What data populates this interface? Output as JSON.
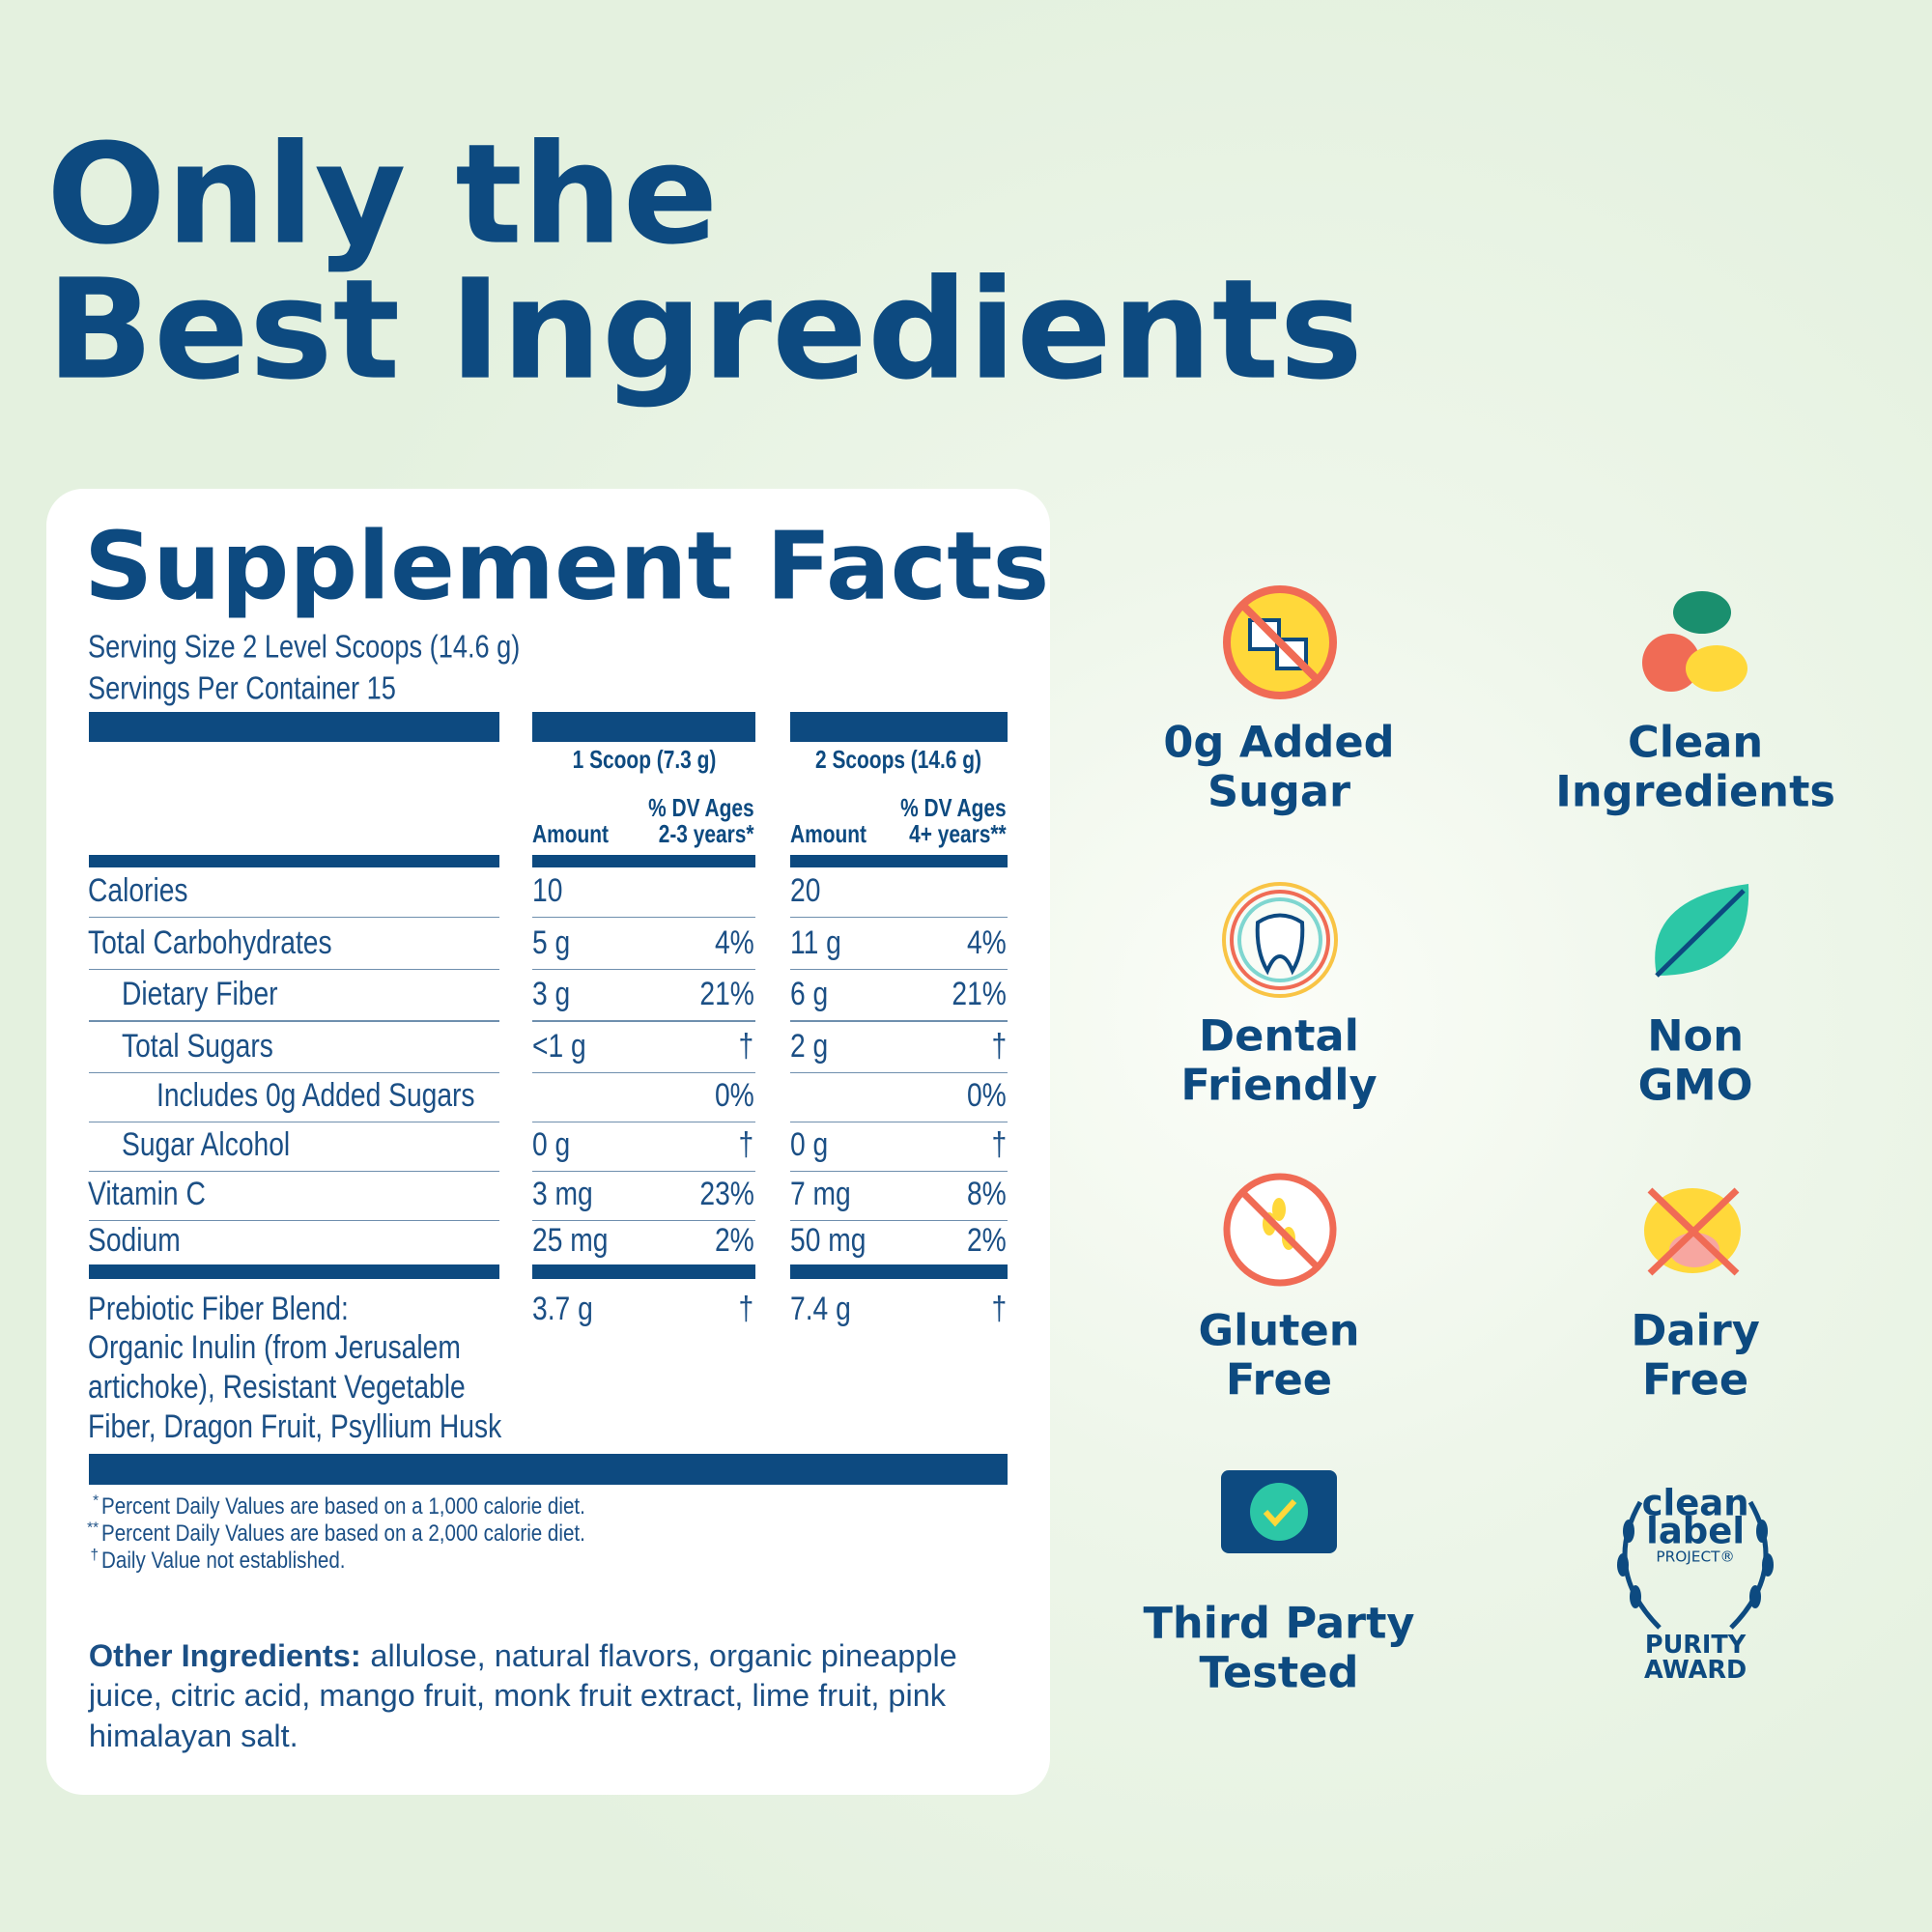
{
  "header": {
    "title_lines": [
      "Only the",
      "Best Ingredients"
    ]
  },
  "facts": {
    "title": "Supplement Facts",
    "serving_size": "Serving Size 2 Level Scoops (14.6 g)",
    "servings_per_container": "Servings Per Container 15",
    "columns": [
      {
        "heading": "1 Scoop (7.3 g)",
        "amount": "Amount",
        "dv_lines": [
          "% DV Ages",
          "2-3 years*"
        ]
      },
      {
        "heading": "2 Scoops (14.6 g)",
        "amount": "Amount",
        "dv_lines": [
          "% DV Ages",
          "4+ years**"
        ]
      }
    ],
    "rows": [
      {
        "label": "Calories",
        "cells": [
          "10",
          null,
          "20",
          null
        ]
      },
      {
        "label": "Total Carbohydrates",
        "cells": [
          "5 g",
          "4%",
          "11 g",
          "4%"
        ]
      },
      {
        "label": "Dietary Fiber",
        "cells": [
          "3 g",
          "21%",
          "6 g",
          "21%"
        ]
      },
      {
        "label": "Total Sugars",
        "cells": [
          "<1 g",
          "†",
          "2 g",
          "†"
        ]
      },
      {
        "label": "Includes 0g Added Sugars",
        "cells": [
          null,
          "0%",
          null,
          "0%"
        ]
      },
      {
        "label": "Sugar Alcohol",
        "cells": [
          "0 g",
          "†",
          "0 g",
          "†"
        ]
      },
      {
        "label": "Vitamin C",
        "cells": [
          "3 mg",
          "23%",
          "7 mg",
          "8%"
        ]
      },
      {
        "label": "Sodium",
        "cells": [
          "25 mg",
          "2%",
          "50 mg",
          "2%"
        ]
      }
    ],
    "blend": {
      "label_lines": [
        "Prebiotic Fiber Blend:",
        "Organic Inulin (from Jerusalem",
        "artichoke), Resistant Vegetable",
        "Fiber, Dragon Fruit, Psyllium Husk"
      ],
      "cells": [
        "3.7 g",
        "†",
        "7.4 g",
        "†"
      ]
    },
    "footnotes": [
      {
        "mark": "*",
        "text": "Percent Daily Values are based on a 1,000 calorie diet."
      },
      {
        "mark": "**",
        "text": "Percent Daily Values are based on a 2,000 calorie diet."
      },
      {
        "mark": "†",
        "text": "Daily Value not established."
      }
    ],
    "other": {
      "label": "Other Ingredients:",
      "text": "allulose, natural flavors, organic pineapple juice, citric acid, mango fruit, monk fruit extract, lime fruit, pink himalayan salt."
    }
  },
  "badges": [
    {
      "lines": [
        "0g Added",
        "Sugar"
      ]
    },
    {
      "lines": [
        "Clean",
        "Ingredients"
      ]
    },
    {
      "lines": [
        "Dental",
        "Friendly"
      ]
    },
    {
      "lines": [
        "Non",
        "GMO"
      ]
    },
    {
      "lines": [
        "Gluten",
        "Free"
      ]
    },
    {
      "lines": [
        "Dairy",
        "Free"
      ]
    },
    {
      "lines": [
        "Third Party",
        "Tested"
      ]
    }
  ],
  "award": {
    "lines": [
      "clean",
      "label",
      "PROJECT®",
      "PURITY",
      "AWARD"
    ]
  }
}
